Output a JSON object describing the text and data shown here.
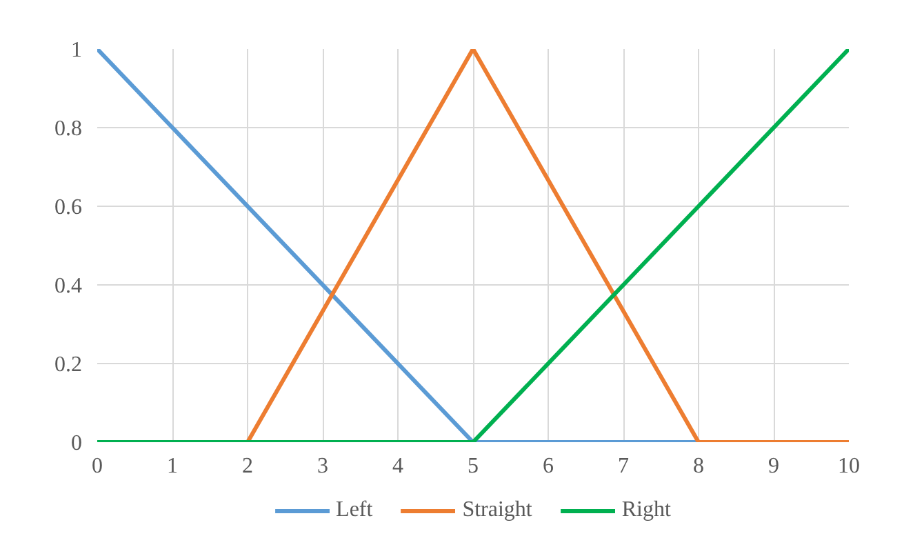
{
  "chart_data": {
    "type": "line",
    "xlim": [
      0,
      10
    ],
    "ylim": [
      0,
      1
    ],
    "xticks": [
      0,
      1,
      2,
      3,
      4,
      5,
      6,
      7,
      8,
      9,
      10
    ],
    "yticks": [
      0,
      0.2,
      0.4,
      0.6,
      0.8,
      1
    ],
    "grid": true,
    "legend": "bottom",
    "marker": "none",
    "line_style": "solid",
    "series": [
      {
        "name": "Left",
        "color": "#5b9bd5",
        "x": [
          0,
          5,
          10
        ],
        "values": [
          1,
          0,
          0
        ]
      },
      {
        "name": "Straight",
        "color": "#ed7d31",
        "x": [
          0,
          2,
          5,
          8,
          10
        ],
        "values": [
          0,
          0,
          1,
          0,
          0
        ]
      },
      {
        "name": "Right",
        "color": "#00b050",
        "x": [
          0,
          5,
          10
        ],
        "values": [
          0,
          0,
          1
        ]
      }
    ]
  }
}
